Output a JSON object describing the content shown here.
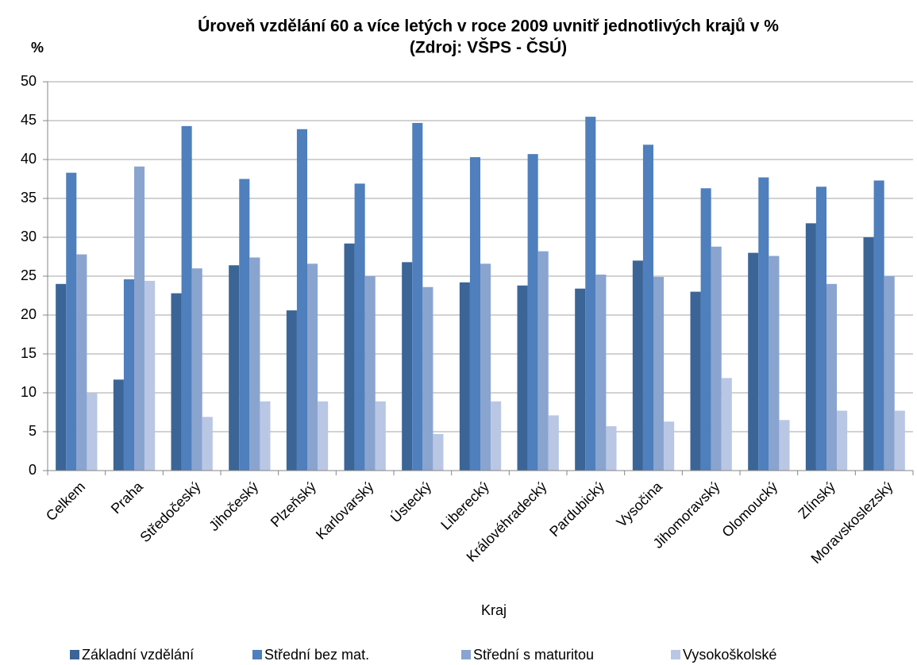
{
  "chart_data": {
    "type": "bar",
    "title": "Úroveň vzdělání 60 a více letých v roce 2009 uvnitř jednotlivých krajů v %",
    "subtitle": "(Zdroj: VŠPS - ČSÚ)",
    "y_label": "%",
    "x_label": "Kraj",
    "categories": [
      "Celkem",
      "Praha",
      "Středočeský",
      "Jihočeský",
      "Plzeňský",
      "Karlovarský",
      "Ústecký",
      "Liberecký",
      "Královéhradecký",
      "Pardubický",
      "Vysočina",
      "Jihomoravský",
      "Olomoucký",
      "Zlínský",
      "Moravskoslezský"
    ],
    "series": [
      {
        "name": "Základní vzdělání",
        "color": "#3b6596",
        "values": [
          24.0,
          11.7,
          22.8,
          26.4,
          20.6,
          29.2,
          26.8,
          24.2,
          23.8,
          23.4,
          27.0,
          23.0,
          28.0,
          31.8,
          30.0
        ]
      },
      {
        "name": "Střední bez mat.",
        "color": "#4f7fbc",
        "values": [
          38.3,
          24.6,
          44.3,
          37.5,
          43.9,
          36.9,
          44.7,
          40.3,
          40.7,
          45.5,
          41.9,
          36.3,
          37.7,
          36.5,
          37.3
        ]
      },
      {
        "name": "Střední s maturitou",
        "color": "#8aa4d0",
        "values": [
          27.8,
          39.1,
          26.0,
          27.4,
          26.6,
          25.0,
          23.6,
          26.6,
          28.2,
          25.2,
          24.9,
          28.8,
          27.6,
          24.0,
          25.0
        ]
      },
      {
        "name": "Vysokoškolské",
        "color": "#b9c7e4",
        "values": [
          10.0,
          24.4,
          6.9,
          8.9,
          8.9,
          8.9,
          4.7,
          8.9,
          7.1,
          5.7,
          6.3,
          11.9,
          6.5,
          7.7,
          7.7
        ]
      }
    ],
    "ylim": [
      0,
      50
    ],
    "yticks": [
      0,
      5,
      10,
      15,
      20,
      25,
      30,
      35,
      40,
      45,
      50
    ],
    "grid": true,
    "legend": "bottom"
  }
}
